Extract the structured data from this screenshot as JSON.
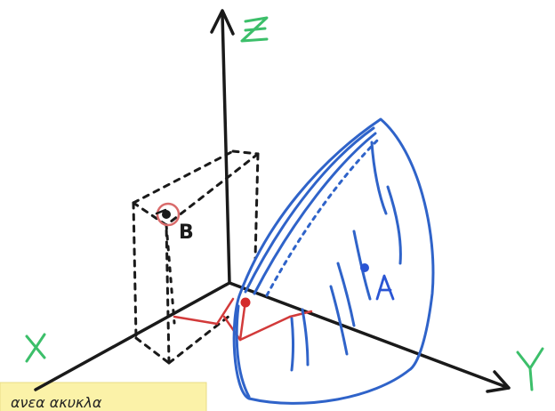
{
  "axes": {
    "z_label": "Z",
    "y_label": "Y",
    "x_label": "X"
  },
  "points": {
    "a_label": "A",
    "b_label": "B"
  },
  "sticky_note": {
    "text": "ανεα ακυκλα"
  },
  "colors": {
    "axis": "#1a1a1a",
    "axis_label": "#3cbf6a",
    "sphere_patch": "#2f63c9",
    "point_a": "#2a55d4",
    "projection": "#d23a3a",
    "point_b_ring": "#d96b6b",
    "box": "#1a1a1a",
    "sticky_note": "#fbf2a8"
  }
}
